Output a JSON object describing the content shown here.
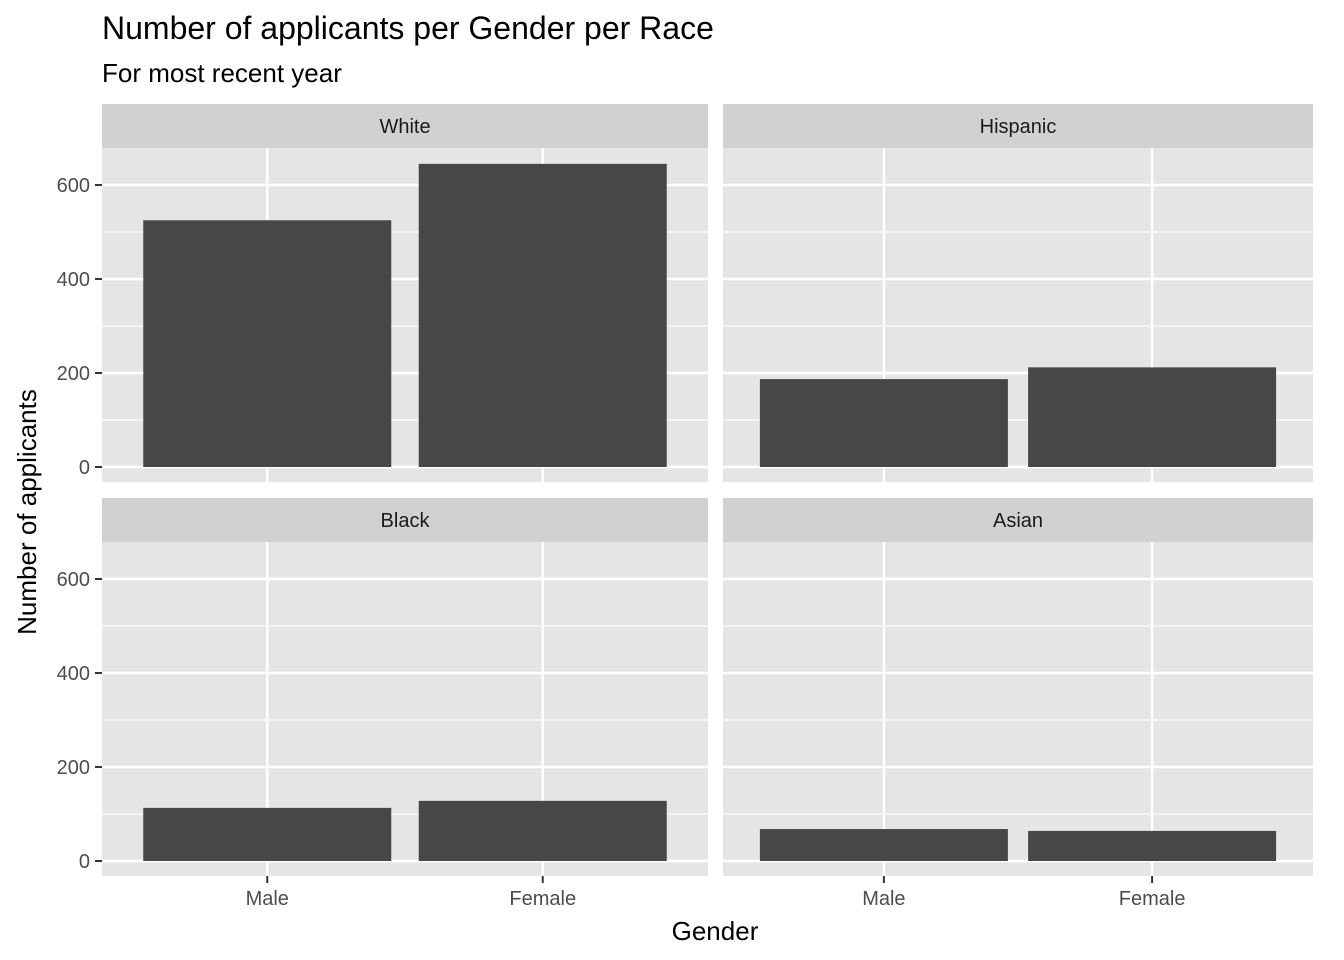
{
  "chart_data": {
    "type": "bar",
    "title": "Number of applicants per Gender per Race",
    "subtitle": "For most recent year",
    "xlabel": "Gender",
    "ylabel": "Number of applicants",
    "categories": [
      "Male",
      "Female"
    ],
    "ylim": [
      0,
      700
    ],
    "yticks": [
      "0",
      "200",
      "400",
      "600"
    ],
    "grid": true,
    "facets": [
      {
        "name": "White",
        "values": [
          525,
          645
        ]
      },
      {
        "name": "Hispanic",
        "values": [
          187,
          212
        ]
      },
      {
        "name": "Black",
        "values": [
          113,
          128
        ]
      },
      {
        "name": "Asian",
        "values": [
          68,
          64
        ]
      }
    ],
    "colors": {
      "bar": "#474747",
      "panel": "#e5e5e5",
      "strip": "#d1d1d1",
      "grid": "#ffffff",
      "tick": "#333333"
    }
  }
}
